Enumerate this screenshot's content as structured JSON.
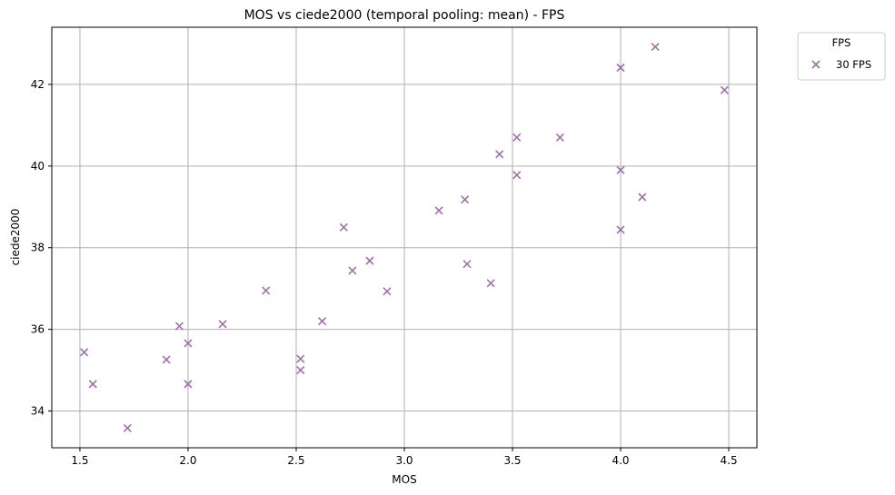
{
  "chart_data": {
    "type": "scatter",
    "title": "MOS vs ciede2000 (temporal pooling: mean) - FPS",
    "xlabel": "MOS",
    "ylabel": "ciede2000",
    "xlim": [
      1.37,
      4.63
    ],
    "ylim": [
      33.1,
      43.4
    ],
    "xticks": [
      1.5,
      2.0,
      2.5,
      3.0,
      3.5,
      4.0,
      4.5
    ],
    "xtick_labels": [
      "1.5",
      "2.0",
      "2.5",
      "3.0",
      "3.5",
      "4.0",
      "4.5"
    ],
    "yticks": [
      34,
      36,
      38,
      40,
      42
    ],
    "ytick_labels": [
      "34",
      "36",
      "38",
      "40",
      "42"
    ],
    "grid": true,
    "legend": {
      "title": "FPS",
      "placement": "outside-top-right"
    },
    "series": [
      {
        "name": "30 FPS",
        "color": "#9e72a9",
        "marker": "x",
        "points": [
          [
            1.52,
            35.44
          ],
          [
            1.56,
            34.66
          ],
          [
            1.72,
            33.58
          ],
          [
            1.9,
            35.26
          ],
          [
            1.96,
            36.08
          ],
          [
            2.0,
            35.66
          ],
          [
            2.0,
            34.66
          ],
          [
            2.16,
            36.13
          ],
          [
            2.36,
            36.95
          ],
          [
            2.52,
            35.28
          ],
          [
            2.52,
            35.0
          ],
          [
            2.62,
            36.2
          ],
          [
            2.72,
            38.5
          ],
          [
            2.76,
            37.44
          ],
          [
            2.84,
            37.68
          ],
          [
            2.92,
            36.93
          ],
          [
            3.16,
            38.91
          ],
          [
            3.28,
            39.18
          ],
          [
            3.29,
            37.6
          ],
          [
            3.4,
            37.13
          ],
          [
            3.44,
            40.29
          ],
          [
            3.52,
            40.7
          ],
          [
            3.52,
            39.78
          ],
          [
            3.72,
            40.7
          ],
          [
            4.0,
            42.41
          ],
          [
            4.0,
            39.9
          ],
          [
            4.0,
            38.44
          ],
          [
            4.1,
            39.24
          ],
          [
            4.16,
            42.92
          ],
          [
            4.48,
            41.86
          ]
        ]
      }
    ]
  }
}
